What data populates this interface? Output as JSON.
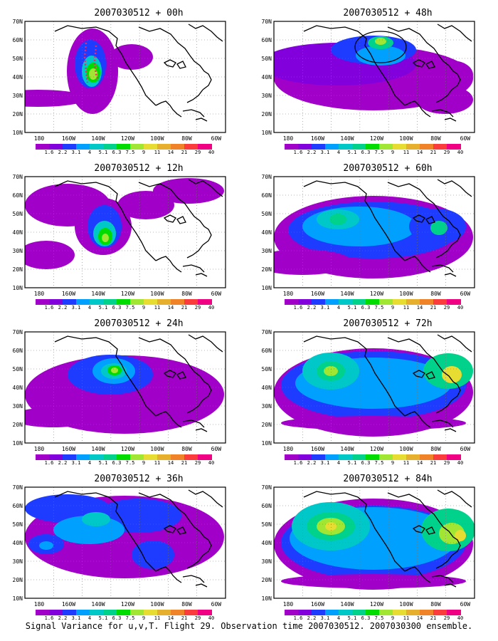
{
  "figure": {
    "caption": "Signal Variance for u,v,T. Flight 29. Observation time 2007030512. 2007030300 ensemble."
  },
  "axes": {
    "lat_labels": [
      "70N",
      "60N",
      "50N",
      "40N",
      "30N",
      "20N",
      "10N"
    ],
    "lon_labels": [
      "180",
      "160W",
      "140W",
      "120W",
      "100W",
      "80W",
      "60W"
    ]
  },
  "colorbar": {
    "levels": [
      "1.6",
      "2.2",
      "3.1",
      "4",
      "5.1",
      "6.3",
      "7.5",
      "9",
      "11",
      "14",
      "21",
      "29",
      "40"
    ],
    "colors": [
      "#a000c8",
      "#8200dc",
      "#1e3cff",
      "#00a0ff",
      "#00c8c8",
      "#00d28c",
      "#00dc00",
      "#a0e632",
      "#e6dc32",
      "#e6af2d",
      "#f08228",
      "#fa3c3c",
      "#f00082"
    ]
  },
  "panels": [
    {
      "title": "2007030512 + 00h"
    },
    {
      "title": "2007030512 + 48h"
    },
    {
      "title": "2007030512 + 12h"
    },
    {
      "title": "2007030512 + 60h"
    },
    {
      "title": "2007030512 + 24h"
    },
    {
      "title": "2007030512 + 72h"
    },
    {
      "title": "2007030512 + 36h"
    },
    {
      "title": "2007030512 + 84h"
    }
  ]
}
